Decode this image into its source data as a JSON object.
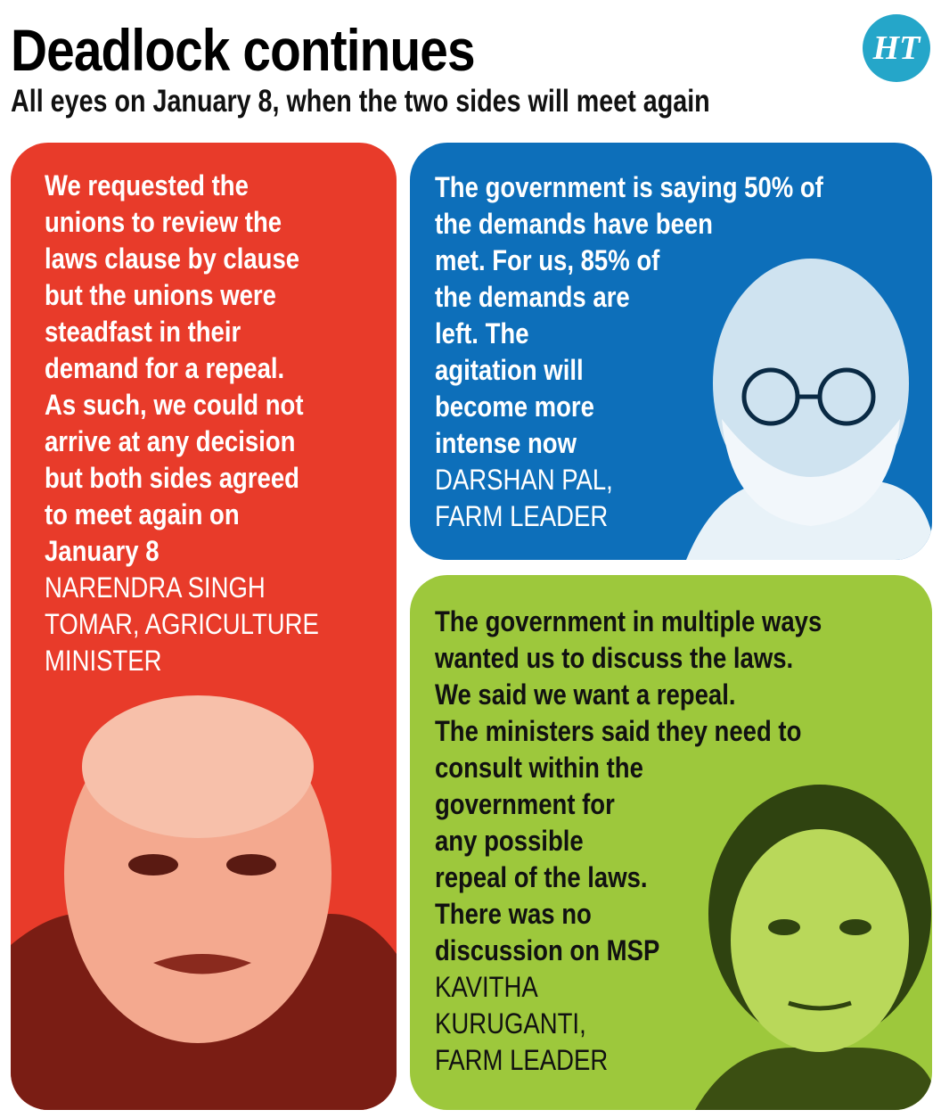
{
  "header": {
    "title": "Deadlock continues",
    "subtitle": "All eyes on January 8, when the two sides will meet again",
    "logo": "HT"
  },
  "cards": [
    {
      "quote_lines": [
        "We requested the",
        "unions to review the",
        "laws clause by clause",
        "but the unions were",
        "steadfast in their",
        "demand for a repeal.",
        "As such, we could not",
        "arrive at any decision",
        "but both sides agreed",
        "to meet again on",
        "January 8"
      ],
      "attribution_lines": [
        "NARENDRA SINGH",
        "TOMAR, AGRICULTURE",
        "MINISTER"
      ]
    },
    {
      "quote_lines": [
        "The government is saying 50% of",
        "the demands have been",
        "met. For us, 85% of",
        "the demands are",
        "left. The",
        "agitation will",
        "become more",
        "intense now"
      ],
      "attribution_lines": [
        "DARSHAN PAL,",
        "FARM LEADER"
      ]
    },
    {
      "quote_lines": [
        "The government in multiple ways",
        "wanted us to discuss the laws.",
        "We said we want a repeal.",
        "The ministers said they need to",
        "consult within the",
        "government for",
        "any possible",
        "repeal of the laws.",
        "There was no",
        "discussion on MSP"
      ],
      "attribution_lines": [
        "KAVITHA",
        "KURUGANTI,",
        "FARM LEADER"
      ]
    }
  ]
}
